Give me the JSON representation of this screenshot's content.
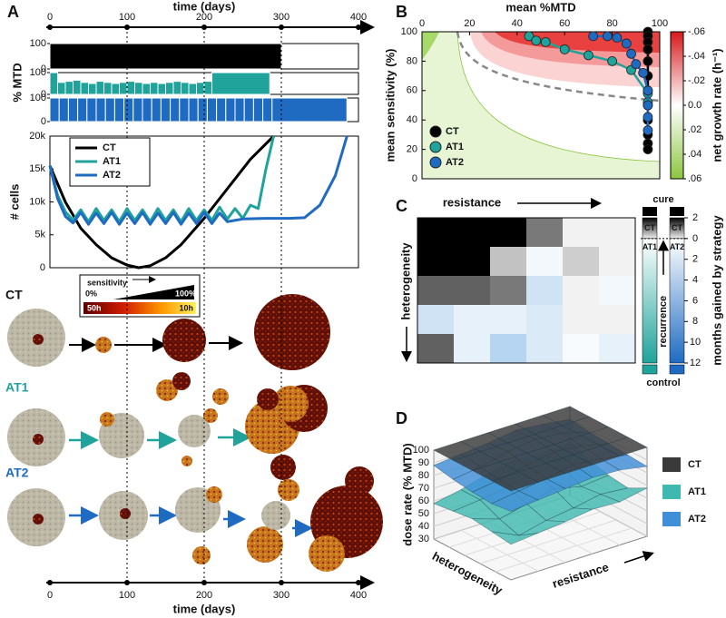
{
  "chart_data": [
    {
      "type": "step",
      "label": "A",
      "xlabel": "time (days)",
      "xlim": [
        0,
        400
      ],
      "xticks": [
        0,
        100,
        200,
        300,
        400
      ],
      "ylabel": "% MTD",
      "ylim": [
        0,
        100
      ],
      "yticks": [
        0,
        100
      ],
      "series": [
        {
          "color": "#000000",
          "bins": [
            0,
            300
          ],
          "values": [
            100
          ]
        },
        {
          "color": "#1fa39a",
          "bins": [
            0,
            10,
            20,
            30,
            40,
            50,
            60,
            70,
            80,
            90,
            100,
            110,
            120,
            130,
            140,
            150,
            160,
            170,
            180,
            190,
            200,
            210,
            285
          ],
          "values": [
            100,
            55,
            60,
            65,
            55,
            50,
            60,
            55,
            50,
            55,
            60,
            55,
            50,
            55,
            50,
            55,
            60,
            55,
            50,
            55,
            60,
            100
          ]
        },
        {
          "color": "#1f6bc2",
          "bins": [
            0,
            12,
            24,
            36,
            48,
            60,
            72,
            84,
            96,
            108,
            120,
            132,
            144,
            156,
            168,
            180,
            192,
            204,
            216,
            228,
            240,
            252,
            264,
            276,
            288,
            385
          ],
          "values": [
            100,
            100,
            100,
            100,
            100,
            100,
            100,
            100,
            100,
            100,
            100,
            100,
            100,
            100,
            100,
            100,
            100,
            100,
            100,
            100,
            100,
            100,
            100,
            100,
            100
          ]
        }
      ]
    },
    {
      "type": "line",
      "xlabel": "time (days)",
      "xlim": [
        0,
        400
      ],
      "xticks": [
        0,
        100,
        200,
        300,
        400
      ],
      "ylabel": "# cells",
      "ylim": [
        0,
        20000
      ],
      "yticks": [
        0,
        {
          "value": 5000,
          "label": "5k"
        },
        {
          "value": 10000,
          "label": "10k"
        },
        {
          "value": 15000,
          "label": "15k"
        },
        {
          "value": 20000,
          "label": "20k"
        }
      ],
      "legend": "upper left",
      "series": [
        {
          "name": "CT",
          "color": "#000000",
          "x": [
            0,
            20,
            40,
            60,
            80,
            100,
            115,
            130,
            150,
            170,
            200,
            230,
            260,
            290
          ],
          "values": [
            15500,
            10000,
            6000,
            3500,
            1500,
            400,
            0,
            300,
            1500,
            3500,
            7500,
            12000,
            16500,
            20000
          ]
        },
        {
          "name": "AT1",
          "color": "#1fa39a",
          "x": [
            0,
            10,
            20,
            30,
            40,
            50,
            60,
            70,
            80,
            90,
            100,
            110,
            120,
            130,
            140,
            150,
            160,
            170,
            180,
            190,
            200,
            210,
            220,
            230,
            240,
            250,
            260,
            270,
            280,
            290
          ],
          "values": [
            15500,
            11000,
            8500,
            7200,
            8800,
            7000,
            9000,
            7200,
            8800,
            7000,
            9000,
            7200,
            8800,
            7000,
            9000,
            7200,
            8800,
            7000,
            9000,
            7200,
            8800,
            7200,
            9200,
            7400,
            9000,
            7500,
            9500,
            9000,
            15000,
            20000
          ]
        },
        {
          "name": "AT2",
          "color": "#1f6bc2",
          "x": [
            0,
            10,
            20,
            30,
            40,
            50,
            60,
            70,
            80,
            90,
            100,
            110,
            120,
            130,
            140,
            150,
            160,
            170,
            180,
            190,
            200,
            210,
            220,
            230,
            250,
            280,
            310,
            330,
            350,
            370,
            385
          ],
          "values": [
            15500,
            10500,
            7800,
            6800,
            8400,
            6600,
            8300,
            6700,
            8400,
            6600,
            8300,
            6700,
            8400,
            6600,
            8300,
            6700,
            8400,
            6600,
            8300,
            6700,
            8400,
            6700,
            8300,
            7000,
            7400,
            7500,
            7500,
            7600,
            9500,
            14000,
            20000
          ]
        }
      ]
    },
    {
      "type": "line",
      "label": "B",
      "xlabel": "mean %MTD",
      "xlim": [
        0,
        100
      ],
      "xticks": [
        0,
        20,
        40,
        60,
        80,
        100
      ],
      "ylabel": "mean sensitivity (%)",
      "ylim": [
        0,
        100
      ],
      "yticks": [
        0,
        20,
        40,
        60,
        80,
        100
      ],
      "markers": true,
      "legend": "lower left",
      "series": [
        {
          "name": "CT",
          "color": "#000000",
          "x": [
            95,
            95,
            95,
            95,
            95,
            95,
            95,
            95,
            95,
            95,
            95,
            95
          ],
          "values": [
            100,
            97,
            93,
            88,
            80,
            70,
            60,
            50,
            40,
            30,
            24,
            20
          ]
        },
        {
          "name": "AT1",
          "color": "#1fa39a",
          "x": [
            45,
            48,
            52,
            60,
            70,
            80,
            88,
            95,
            95
          ],
          "values": [
            97,
            94,
            93,
            88,
            84,
            80,
            74,
            58,
            52
          ]
        },
        {
          "name": "AT2",
          "color": "#1f6bc2",
          "x": [
            72,
            78,
            82,
            86,
            88,
            90,
            93,
            95,
            95,
            95,
            95
          ],
          "values": [
            97,
            97,
            96,
            92,
            85,
            78,
            72,
            60,
            50,
            42,
            33
          ]
        }
      ],
      "colorbar": {
        "label": "net growth rate (h⁻¹)",
        "lim": [
          -0.06,
          0.06
        ],
        "ticks": [
          {
            "value": -0.06,
            "label": "-.06"
          },
          {
            "value": -0.04,
            "label": "-.04"
          },
          {
            "value": -0.02,
            "label": "-.02"
          },
          {
            "value": 0,
            "label": "0.0"
          },
          {
            "value": 0.02,
            "label": ".02"
          },
          {
            "value": 0.04,
            "label": ".04"
          },
          {
            "value": 0.06,
            "label": ".06"
          }
        ]
      }
    },
    {
      "type": "heatmap",
      "label": "C",
      "xlabel": "resistance",
      "ylabel": "heterogeneity",
      "values": [
        [
          -2,
          -2,
          -2,
          -1,
          0,
          0
        ],
        [
          -2,
          -2,
          -0.4,
          0.5,
          -0.3,
          0
        ],
        [
          -1.2,
          -1.2,
          -1,
          2,
          0,
          0.5
        ],
        [
          2,
          1,
          1,
          1.5,
          0,
          0
        ],
        [
          -1.2,
          1,
          3,
          1.5,
          0.3,
          1
        ]
      ],
      "colorbar": {
        "label": "months gained by strategy",
        "lim": [
          -2,
          12
        ],
        "ticks": [
          {
            "value": -2,
            "label": "2"
          },
          0,
          2,
          4,
          6,
          8,
          10,
          12
        ],
        "top": "cure",
        "bottom": "control",
        "middle": "recurrence",
        "columns": [
          {
            "upper": "CT",
            "lower": "AT1",
            "color": "#1fa39a"
          },
          {
            "upper": "CT",
            "lower": "AT2",
            "color": "#1f6bc2"
          }
        ]
      }
    },
    {
      "type": "surface",
      "label": "D",
      "zlabel": "dose rate (% MTD)",
      "zlim": [
        30,
        100
      ],
      "zticks": [
        30,
        40,
        50,
        60,
        70,
        80,
        90,
        100
      ],
      "xlabel": "heterogeneity",
      "ylabel": "resistance",
      "legend": "right",
      "series": [
        {
          "name": "CT",
          "color": "#3a3a3a",
          "values": [
            [
              100,
              100,
              100,
              100,
              100,
              100
            ],
            [
              100,
              100,
              100,
              100,
              100,
              100
            ],
            [
              100,
              100,
              100,
              100,
              100,
              100
            ],
            [
              100,
              100,
              100,
              100,
              100,
              100
            ],
            [
              100,
              100,
              100,
              100,
              100,
              100
            ]
          ]
        },
        {
          "name": "AT1",
          "color": "#3fb8b0",
          "values": [
            [
              58,
              62,
              68,
              72,
              70,
              72
            ],
            [
              60,
              62,
              65,
              70,
              68,
              66
            ],
            [
              62,
              55,
              60,
              65,
              60,
              62
            ],
            [
              60,
              50,
              55,
              58,
              62,
              60
            ],
            [
              58,
              60,
              62,
              65,
              64,
              68
            ]
          ]
        },
        {
          "name": "AT2",
          "color": "#3f8fd8",
          "values": [
            [
              88,
              90,
              92,
              95,
              93,
              90
            ],
            [
              85,
              88,
              93,
              96,
              94,
              88
            ],
            [
              83,
              86,
              90,
              94,
              92,
              87
            ],
            [
              82,
              85,
              88,
              92,
              90,
              86
            ],
            [
              84,
              86,
              88,
              90,
              89,
              85
            ]
          ]
        }
      ]
    }
  ],
  "illustration": {
    "rows": [
      "CT",
      "AT1",
      "AT2"
    ],
    "sensitivity": {
      "title": "sensitivity",
      "low": "0%",
      "high": "100%",
      "slow": "50h",
      "fast": "10h"
    }
  }
}
